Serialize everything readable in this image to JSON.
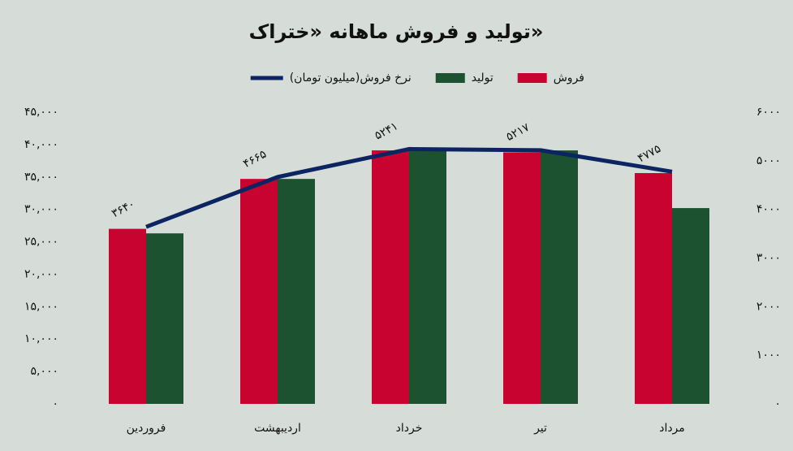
{
  "chart_data": {
    "type": "bar",
    "title": "تولید و فروش ماهانه «ختراک»",
    "categories": [
      "فروردین",
      "اردیبهشت",
      "خرداد",
      "تیر",
      "مرداد"
    ],
    "series": [
      {
        "name": "فروش",
        "color": "#c8032f",
        "values": [
          27000,
          34700,
          39100,
          38800,
          35600
        ]
      },
      {
        "name": "تولید",
        "color": "#1d5230",
        "values": [
          26300,
          34700,
          39100,
          39100,
          30200
        ]
      },
      {
        "name": "نرخ فروش(میلیون تومان)",
        "color": "#0c2461",
        "type": "line",
        "axis": "y2",
        "values": [
          3640,
          4665,
          5241,
          5217,
          4775
        ],
        "value_labels": [
          "۳۶۴۰",
          "۴۶۶۵",
          "۵۲۴۱",
          "۵۲۱۷",
          "۴۷۷۵"
        ]
      }
    ],
    "ylim": [
      0,
      45000
    ],
    "yticks": [
      {
        "value": 0,
        "label": "۰"
      },
      {
        "value": 5000,
        "label": "۵,۰۰۰"
      },
      {
        "value": 10000,
        "label": "۱۰,۰۰۰"
      },
      {
        "value": 15000,
        "label": "۱۵,۰۰۰"
      },
      {
        "value": 20000,
        "label": "۲۰,۰۰۰"
      },
      {
        "value": 25000,
        "label": "۲۵,۰۰۰"
      },
      {
        "value": 30000,
        "label": "۳۰,۰۰۰"
      },
      {
        "value": 35000,
        "label": "۳۵,۰۰۰"
      },
      {
        "value": 40000,
        "label": "۴۰,۰۰۰"
      },
      {
        "value": 45000,
        "label": "۴۵,۰۰۰"
      }
    ],
    "y2lim": [
      0,
      6000
    ],
    "y2ticks": [
      {
        "value": 0,
        "label": "۰"
      },
      {
        "value": 1000,
        "label": "۱۰۰۰"
      },
      {
        "value": 2000,
        "label": "۲۰۰۰"
      },
      {
        "value": 3000,
        "label": "۳۰۰۰"
      },
      {
        "value": 4000,
        "label": "۴۰۰۰"
      },
      {
        "value": 5000,
        "label": "۵۰۰۰"
      },
      {
        "value": 6000,
        "label": "۶۰۰۰"
      }
    ],
    "grid": false
  }
}
